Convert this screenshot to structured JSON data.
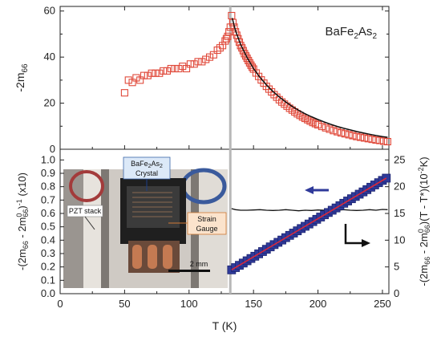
{
  "chart_data": [
    {
      "type": "scatter",
      "title": "",
      "sample_label": {
        "pre": "BaFe",
        "sub1": "2",
        "mid": "As",
        "sub2": "2"
      },
      "ylabel": {
        "pre": "-2m",
        "sub": "66"
      },
      "xlim": [
        0,
        255
      ],
      "ylim": [
        0,
        62
      ],
      "yticks": [
        "0",
        "20",
        "40",
        "60"
      ],
      "marker_color": "#e0493a",
      "fit_color": "#111111",
      "series": [
        {
          "values_x": [
            50,
            53,
            56,
            59,
            62,
            65,
            68,
            71,
            74,
            77,
            80,
            83,
            86,
            89,
            92,
            95,
            98,
            101,
            104,
            107,
            110,
            113,
            116,
            119,
            122,
            124,
            126,
            128,
            129,
            130,
            131,
            132,
            133,
            134,
            135,
            136,
            137,
            138,
            139,
            140,
            141,
            142,
            143,
            144,
            145,
            146,
            147,
            148,
            149,
            150,
            152,
            154,
            156,
            158,
            160,
            162,
            164,
            166,
            168,
            170,
            172,
            174,
            176,
            178,
            180,
            182,
            184,
            186,
            188,
            190,
            192,
            194,
            196,
            198,
            200,
            203,
            206,
            209,
            212,
            215,
            218,
            221,
            224,
            227,
            230,
            233,
            236,
            239,
            242,
            245,
            248,
            251,
            254
          ],
          "values_y": [
            24.5,
            30,
            29,
            31,
            30,
            32,
            32,
            33,
            33,
            33,
            34,
            34,
            35,
            35,
            35,
            36,
            35,
            37,
            37,
            38,
            38,
            39,
            40,
            41,
            43,
            44,
            45,
            47,
            48,
            49,
            51,
            53,
            58,
            55,
            53,
            51,
            49.5,
            48,
            46.5,
            45,
            44,
            42.8,
            41.5,
            40.5,
            39.5,
            38.5,
            37.5,
            36.5,
            35.6,
            34.8,
            33.1,
            31.6,
            30.1,
            28.7,
            27.3,
            26.1,
            24.9,
            23.7,
            22.6,
            21.5,
            20.5,
            19.6,
            18.7,
            17.8,
            17,
            16.2,
            15.4,
            14.7,
            14,
            13.4,
            12.8,
            12.2,
            11.6,
            11.1,
            10.6,
            9.9,
            9.3,
            8.7,
            8.1,
            7.6,
            7.1,
            6.7,
            6.3,
            5.9,
            5.5,
            5.2,
            4.9,
            4.6,
            4.3,
            4.0,
            3.8,
            3.5,
            3.3
          ]
        }
      ],
      "fit": {
        "x_from": 133.5,
        "x_to": 254,
        "x": [
          133.5,
          136,
          140,
          145,
          150,
          155,
          160,
          165,
          170,
          175,
          180,
          185,
          190,
          195,
          200,
          205,
          210,
          215,
          220,
          225,
          230,
          235,
          240,
          245,
          250,
          254
        ],
        "y": [
          57,
          51.5,
          45.5,
          39.8,
          35,
          31.2,
          27.9,
          25.1,
          22.7,
          20.5,
          18.6,
          16.9,
          15.4,
          14.1,
          12.9,
          11.8,
          10.8,
          9.9,
          9.1,
          8.4,
          7.7,
          7.1,
          6.5,
          6.0,
          5.5,
          5.2
        ]
      }
    },
    {
      "type": "scatter",
      "title": "",
      "ylabel_left": "-(2m66 - 2m066)-1 (x10)",
      "ylabel_right": "-(2m66 - 2m066)(T - T*)(10-2K)",
      "xlabel": "T (K)",
      "xlim": [
        0,
        255
      ],
      "xticks": [
        "0",
        "50",
        "100",
        "150",
        "200",
        "250"
      ],
      "ylim_left": [
        0,
        1.08
      ],
      "yticks_left": [
        "0.0",
        "0.1",
        "0.2",
        "0.3",
        "0.4",
        "0.5",
        "0.6",
        "0.7",
        "0.8",
        "0.9",
        "1.0"
      ],
      "ylim_right": [
        0,
        27
      ],
      "yticks_right": [
        "0",
        "5",
        "10",
        "15",
        "20",
        "25"
      ],
      "inverse_series": {
        "name": "",
        "marker_color": "#2f3a9a",
        "fit_color": "#d8293b",
        "x": [
          133,
          136,
          139,
          142,
          145,
          148,
          151,
          154,
          157,
          160,
          163,
          166,
          169,
          172,
          175,
          178,
          181,
          184,
          187,
          190,
          193,
          196,
          199,
          202,
          205,
          208,
          211,
          214,
          217,
          220,
          223,
          226,
          229,
          232,
          235,
          238,
          241,
          244,
          247,
          250,
          253
        ],
        "values": [
          0.178,
          0.195,
          0.212,
          0.229,
          0.246,
          0.263,
          0.28,
          0.298,
          0.315,
          0.332,
          0.35,
          0.367,
          0.384,
          0.401,
          0.419,
          0.436,
          0.453,
          0.47,
          0.487,
          0.504,
          0.521,
          0.539,
          0.556,
          0.573,
          0.59,
          0.607,
          0.624,
          0.641,
          0.658,
          0.676,
          0.693,
          0.71,
          0.727,
          0.744,
          0.761,
          0.778,
          0.796,
          0.813,
          0.83,
          0.847,
          0.864
        ]
      },
      "product_series": {
        "name": "",
        "line_color": "#111111",
        "x": [
          133,
          136,
          140,
          145,
          150,
          155,
          160,
          165,
          170,
          175,
          180,
          185,
          190,
          195,
          200,
          205,
          210,
          215,
          220,
          225,
          230,
          235,
          240,
          245,
          250,
          254
        ],
        "values": [
          15.9,
          15.7,
          15.6,
          15.6,
          15.65,
          15.7,
          15.6,
          15.55,
          15.6,
          15.7,
          15.6,
          15.5,
          15.6,
          15.55,
          15.65,
          15.6,
          15.5,
          15.6,
          15.7,
          15.6,
          15.55,
          15.6,
          15.7,
          15.6,
          15.75,
          15.7
        ]
      }
    }
  ],
  "divider": {
    "x": 132,
    "color": "#b8b8b8"
  },
  "inset": {
    "labels": {
      "crystal_line1": "BaFe2As2",
      "crystal_line2": "Crystal",
      "strain_line1": "Strain",
      "strain_line2": "Gauge",
      "pzt": "PZT stack",
      "scale": "2 mm"
    },
    "colors": {
      "crystal_box": "#dce9f8",
      "strain_box": "#fbe3cc",
      "board": "#2a2a2a",
      "wire": "#a64f2c"
    }
  }
}
